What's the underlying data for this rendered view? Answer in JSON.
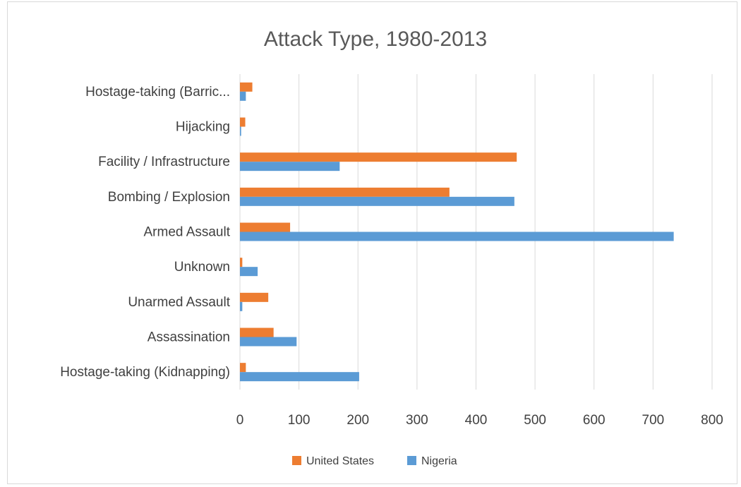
{
  "chart_data": {
    "type": "bar",
    "orientation": "horizontal",
    "title": "Attack Type, 1980-2013",
    "xlabel": "",
    "ylabel": "",
    "categories": [
      "Hostage-taking (Barric...",
      "Hijacking",
      "Facility / Infrastructure",
      "Bombing / Explosion",
      "Armed Assault",
      "Unknown",
      "Unarmed Assault",
      "Assassination",
      "Hostage-taking (Kidnapping)"
    ],
    "series": [
      {
        "name": "United States",
        "color": "#ed7d31",
        "values": [
          21,
          9,
          469,
          355,
          85,
          4,
          48,
          57,
          10
        ]
      },
      {
        "name": "Nigeria",
        "color": "#5b9bd5",
        "values": [
          10,
          2,
          169,
          465,
          735,
          30,
          4,
          96,
          202
        ]
      }
    ],
    "xlim": [
      0,
      800
    ],
    "xticks": [
      0,
      100,
      200,
      300,
      400,
      500,
      600,
      700,
      800
    ],
    "grid": true,
    "legend_position": "bottom"
  }
}
